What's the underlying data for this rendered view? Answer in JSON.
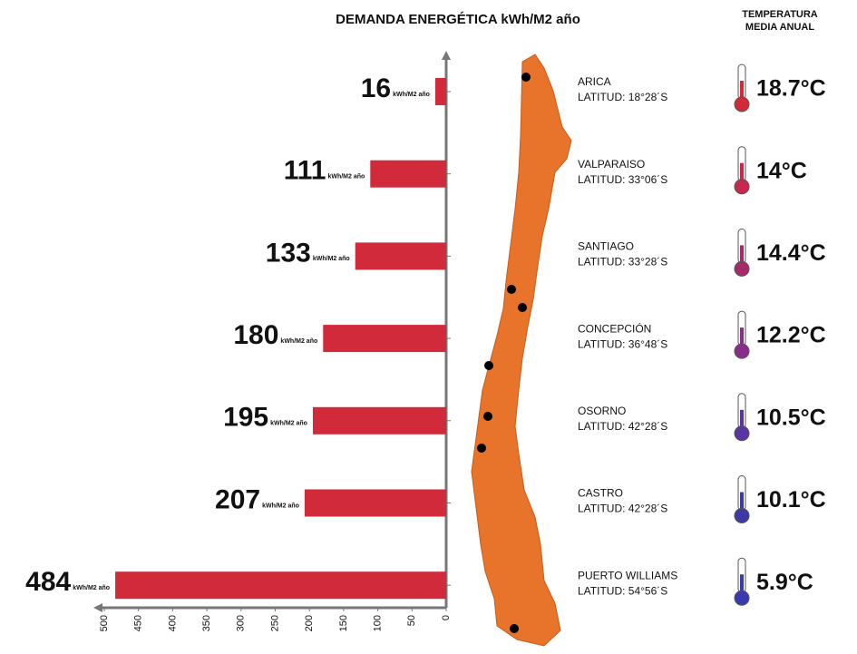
{
  "chart_data": {
    "type": "bar",
    "orientation": "horizontal",
    "title": "DEMANDA ENERGÉTICA kWh/M2 año",
    "unit": "kWh/M2 año",
    "categories": [
      "ARICA",
      "VALPARAISO",
      "SANTIAGO",
      "CONCEPCIÓN",
      "OSORNO",
      "CASTRO",
      "PUERTO WILLIAMS"
    ],
    "latitudes": [
      "LATITUD: 18°28´S",
      "LATITUD: 33°06´S",
      "LATITUD: 33°28´S",
      "LATITUD: 36°48´S",
      "LATITUD: 42°28´S",
      "LATITUD: 42°28´S",
      "LATITUD: 54°56´S"
    ],
    "values": [
      16,
      111,
      133,
      180,
      195,
      207,
      484
    ],
    "color": "#d12a3a",
    "xlim": [
      0,
      500
    ],
    "xticks": [
      0,
      50,
      100,
      150,
      200,
      250,
      300,
      350,
      400,
      450,
      500
    ],
    "temperature": {
      "title": [
        "TEMPERATURA",
        "MEDIA ANUAL"
      ],
      "values": [
        18.7,
        14,
        14.4,
        12.2,
        10.5,
        10.1,
        5.9
      ],
      "value_labels": [
        "18.7°C",
        "14°C",
        "14.4°C",
        "12.2°C",
        "10.5°C",
        "10.1°C",
        "5.9°C"
      ],
      "colors": [
        "#d32a3a",
        "#c8284e",
        "#a52a6a",
        "#8a2d8a",
        "#5a34a0",
        "#3d3aa8",
        "#3a3ab0"
      ]
    }
  }
}
